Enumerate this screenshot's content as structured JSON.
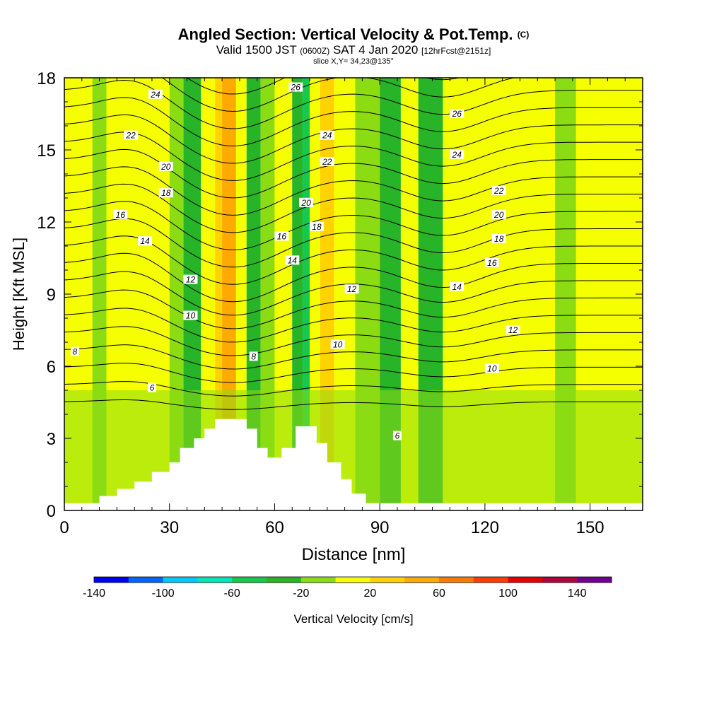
{
  "header": {
    "title": "Angled Section: Vertical Velocity & Pot.Temp.",
    "title_tag": "(C)",
    "valid_a": "Valid 1500 JST",
    "valid_zone": "(0600Z)",
    "valid_b": "SAT 4 Jan 2020",
    "valid_fcst": "[12hrFcst@2151z]",
    "slice": "slice X,Y= 34,23@135°"
  },
  "colorbar": {
    "label": "Vertical Velocity [cm/s]",
    "tick_labels": [
      "-140",
      "-100",
      "-60",
      "-20",
      "20",
      "60",
      "100",
      "140"
    ],
    "colors": [
      "#0000f0",
      "#0064ff",
      "#00c8ff",
      "#00e6b4",
      "#14c850",
      "#28b428",
      "#8cdc14",
      "#f5ff00",
      "#ffd200",
      "#ffaa00",
      "#ff7800",
      "#ff3c00",
      "#e60000",
      "#b4003c",
      "#6e0096"
    ]
  },
  "chart_data": {
    "type": "heatmap",
    "title": "Angled Section: Vertical Velocity & Pot.Temp.",
    "xlabel": "Distance [nm]",
    "ylabel": "Height [Kft MSL]",
    "xlim": [
      0,
      165
    ],
    "ylim": [
      0,
      18
    ],
    "x_ticks": [
      0,
      30,
      60,
      90,
      120,
      150
    ],
    "y_ticks": [
      0,
      3,
      6,
      9,
      12,
      15,
      18
    ],
    "fill_field": "Vertical Velocity [cm/s]",
    "fill_levels": [
      -140,
      -120,
      -100,
      -80,
      -60,
      -40,
      -20,
      0,
      20,
      40,
      60,
      80,
      100,
      120,
      140
    ],
    "bands": [
      {
        "x0": 0,
        "x1": 8,
        "value": 10
      },
      {
        "x0": 8,
        "x1": 12,
        "value": -10
      },
      {
        "x0": 12,
        "x1": 30,
        "value": 10
      },
      {
        "x0": 30,
        "x1": 34,
        "value": -10
      },
      {
        "x0": 34,
        "x1": 39,
        "value": -30
      },
      {
        "x0": 39,
        "x1": 43,
        "value": 10
      },
      {
        "x0": 43,
        "x1": 45,
        "value": 30
      },
      {
        "x0": 45,
        "x1": 49,
        "value": 50
      },
      {
        "x0": 49,
        "x1": 52,
        "value": 10
      },
      {
        "x0": 52,
        "x1": 56,
        "value": -30
      },
      {
        "x0": 56,
        "x1": 60,
        "value": -10
      },
      {
        "x0": 60,
        "x1": 65,
        "value": 10
      },
      {
        "x0": 65,
        "x1": 68,
        "value": -30
      },
      {
        "x0": 68,
        "x1": 70,
        "value": -50
      },
      {
        "x0": 70,
        "x1": 73,
        "value": 10
      },
      {
        "x0": 73,
        "x1": 77,
        "value": 30
      },
      {
        "x0": 77,
        "x1": 83,
        "value": 10
      },
      {
        "x0": 83,
        "x1": 90,
        "value": -10
      },
      {
        "x0": 90,
        "x1": 96,
        "value": -30
      },
      {
        "x0": 96,
        "x1": 101,
        "value": 10
      },
      {
        "x0": 101,
        "x1": 108,
        "value": -30
      },
      {
        "x0": 108,
        "x1": 140,
        "value": 10
      },
      {
        "x0": 140,
        "x1": 146,
        "value": -10
      },
      {
        "x0": 146,
        "x1": 165,
        "value": 10
      }
    ],
    "lower_level": {
      "top": 5,
      "value": -10
    },
    "terrain": [
      [
        0,
        0.3
      ],
      [
        10,
        0.3
      ],
      [
        10,
        0.6
      ],
      [
        15,
        0.6
      ],
      [
        15,
        0.9
      ],
      [
        20,
        0.9
      ],
      [
        20,
        1.2
      ],
      [
        25,
        1.2
      ],
      [
        25,
        1.6
      ],
      [
        30,
        1.6
      ],
      [
        30,
        2.0
      ],
      [
        33,
        2.0
      ],
      [
        33,
        2.6
      ],
      [
        37,
        2.6
      ],
      [
        37,
        3.0
      ],
      [
        40,
        3.0
      ],
      [
        40,
        3.4
      ],
      [
        43,
        3.4
      ],
      [
        43,
        3.8
      ],
      [
        52,
        3.8
      ],
      [
        52,
        3.4
      ],
      [
        55,
        3.4
      ],
      [
        55,
        2.6
      ],
      [
        58,
        2.6
      ],
      [
        58,
        2.2
      ],
      [
        62,
        2.2
      ],
      [
        62,
        2.6
      ],
      [
        66,
        2.6
      ],
      [
        66,
        3.5
      ],
      [
        72,
        3.5
      ],
      [
        72,
        2.8
      ],
      [
        75,
        2.8
      ],
      [
        75,
        2.0
      ],
      [
        79,
        2.0
      ],
      [
        79,
        1.3
      ],
      [
        82,
        1.3
      ],
      [
        82,
        0.7
      ],
      [
        86,
        0.7
      ],
      [
        86,
        0.3
      ],
      [
        165,
        0.3
      ],
      [
        165,
        0
      ],
      [
        0,
        0
      ]
    ],
    "contour_field": "Potential Temperature",
    "contour_levels": [
      6,
      7,
      8,
      9,
      10,
      11,
      12,
      13,
      14,
      15,
      16,
      17,
      18,
      19,
      20,
      21,
      22,
      23,
      24,
      25,
      26,
      27
    ],
    "contour_labels": [
      {
        "value": "24",
        "x": 26,
        "y": 17.3
      },
      {
        "value": "22",
        "x": 19,
        "y": 15.6
      },
      {
        "value": "20",
        "x": 29,
        "y": 14.3
      },
      {
        "value": "18",
        "x": 29,
        "y": 13.2
      },
      {
        "value": "16",
        "x": 16,
        "y": 12.3
      },
      {
        "value": "14",
        "x": 23,
        "y": 11.2
      },
      {
        "value": "12",
        "x": 36,
        "y": 9.6
      },
      {
        "value": "10",
        "x": 36,
        "y": 8.1
      },
      {
        "value": "8",
        "x": 3,
        "y": 6.6
      },
      {
        "value": "8",
        "x": 54,
        "y": 6.4
      },
      {
        "value": "6",
        "x": 25,
        "y": 5.1
      },
      {
        "value": "26",
        "x": 66,
        "y": 17.6
      },
      {
        "value": "24",
        "x": 75,
        "y": 15.6
      },
      {
        "value": "22",
        "x": 75,
        "y": 14.5
      },
      {
        "value": "20",
        "x": 69,
        "y": 12.8
      },
      {
        "value": "18",
        "x": 72,
        "y": 11.8
      },
      {
        "value": "16",
        "x": 62,
        "y": 11.4
      },
      {
        "value": "14",
        "x": 65,
        "y": 10.4
      },
      {
        "value": "12",
        "x": 82,
        "y": 9.2
      },
      {
        "value": "10",
        "x": 78,
        "y": 6.9
      },
      {
        "value": "26",
        "x": 112,
        "y": 16.5
      },
      {
        "value": "24",
        "x": 112,
        "y": 14.8
      },
      {
        "value": "22",
        "x": 124,
        "y": 13.3
      },
      {
        "value": "20",
        "x": 124,
        "y": 12.3
      },
      {
        "value": "18",
        "x": 124,
        "y": 11.3
      },
      {
        "value": "16",
        "x": 122,
        "y": 10.3
      },
      {
        "value": "14",
        "x": 112,
        "y": 9.3
      },
      {
        "value": "12",
        "x": 128,
        "y": 7.5
      },
      {
        "value": "10",
        "x": 122,
        "y": 5.9
      },
      {
        "value": "6",
        "x": 95,
        "y": 3.1
      }
    ]
  }
}
